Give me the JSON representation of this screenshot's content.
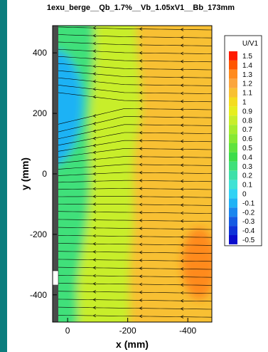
{
  "colors": {
    "side_bar": "#0b7d7d",
    "wall": "#4a4a4a",
    "streamline": "#000000"
  },
  "chart_data": {
    "type": "heatmap",
    "title": "1exu_berge__Qb_1.7%__Vb_1.05xV1__Bb_173mm",
    "xlabel": "x (mm)",
    "ylabel": "y (mm)",
    "xlim": [
      50,
      -480
    ],
    "ylim": [
      -490,
      490
    ],
    "x_ticks": [
      0,
      -200,
      -400
    ],
    "x_tick_labels": [
      "0",
      "-200",
      "-400"
    ],
    "y_ticks": [
      400,
      200,
      0,
      -200,
      -400
    ],
    "y_tick_labels": [
      "400",
      "200",
      "0",
      "-200",
      "-400"
    ],
    "colorbar": {
      "title": "U/V1",
      "levels": [
        1.5,
        1.4,
        1.3,
        1.2,
        1.1,
        1,
        0.9,
        0.8,
        0.7,
        0.6,
        0.5,
        0.4,
        0.3,
        0.2,
        0.1,
        0,
        -0.1,
        -0.2,
        -0.3,
        -0.4,
        -0.5
      ],
      "labels": [
        "1.5",
        "1.4",
        "1.3",
        "1.2",
        "1.1",
        "1",
        "0.9",
        "0.8",
        "0.7",
        "0.6",
        "0.5",
        "0.4",
        "0.3",
        "0.2",
        "0.1",
        "0",
        "-0.1",
        "-0.2",
        "-0.3",
        "-0.4",
        "-0.5"
      ],
      "colors": [
        "#ff1a00",
        "#ff5500",
        "#ff8a1c",
        "#fba53d",
        "#f8c033",
        "#f4dc1f",
        "#e6ee1e",
        "#c8ee2a",
        "#a6ec2e",
        "#86e833",
        "#5fe23d",
        "#3cdc4a",
        "#3fe07a",
        "#3ee0a8",
        "#3fe2d4",
        "#30d2f4",
        "#1fb2f5",
        "#1a86ee",
        "#155be3",
        "#0f33d8",
        "#0a0ccc"
      ]
    },
    "field_regions": [
      {
        "region": "near-wall separation bubble",
        "value": -0.1
      },
      {
        "region": "outer wall-side band",
        "value": 0.35
      },
      {
        "region": "central band",
        "value": 0.75
      },
      {
        "region": "channel side",
        "value": 1.15
      },
      {
        "region": "lower-right pocket",
        "value": 1.25
      }
    ],
    "streamlines": "horizontal flow streamlines from right to left, diverging around the near-wall separation bubble",
    "grid": false
  }
}
